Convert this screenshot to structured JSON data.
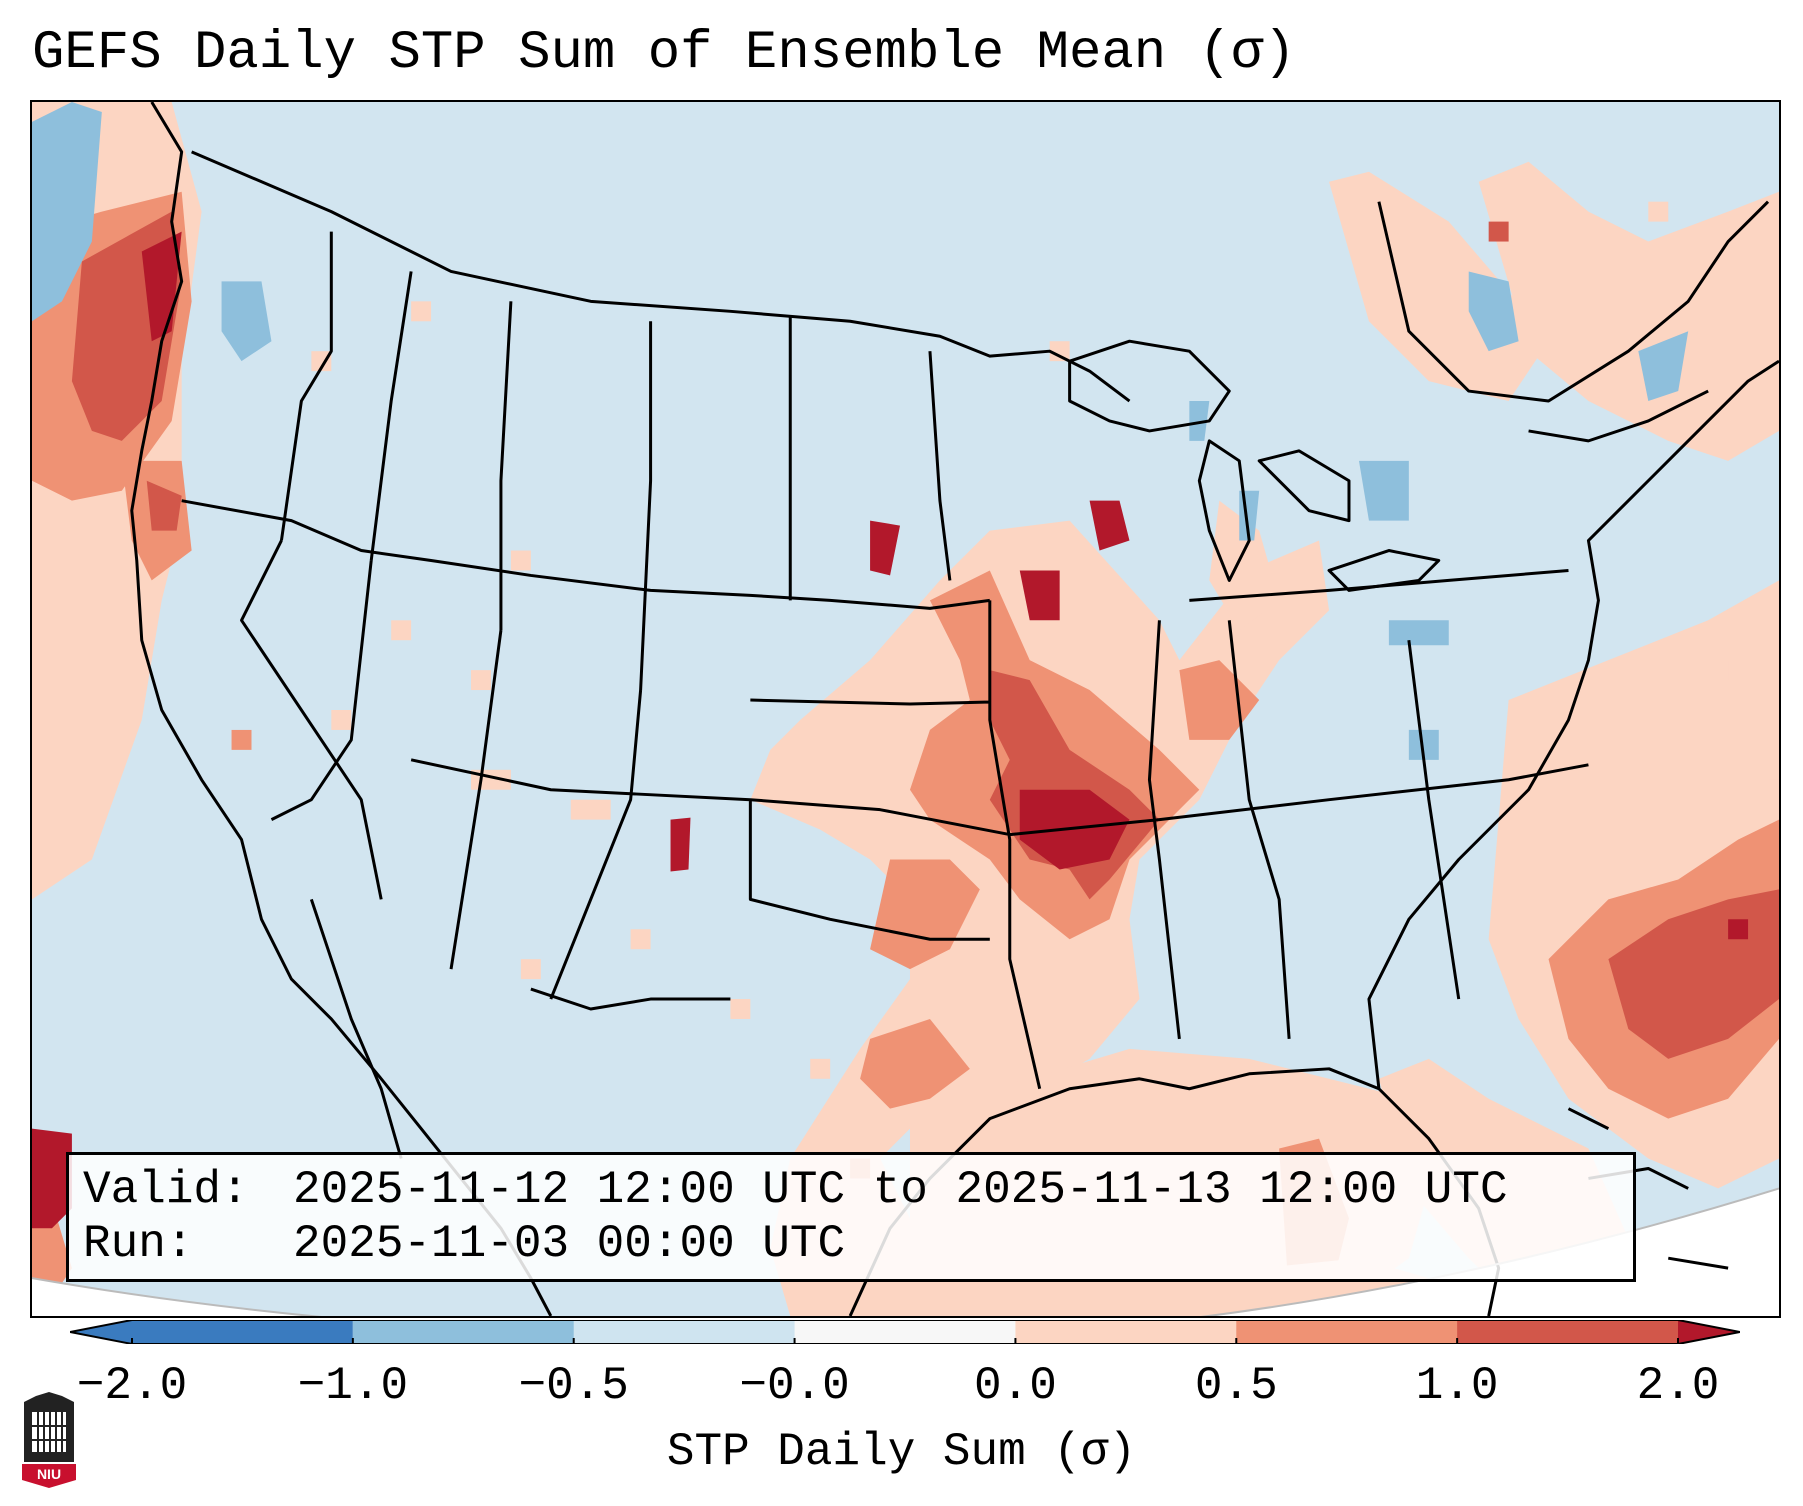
{
  "title": "GEFS Daily STP Sum of Ensemble Mean (σ)",
  "info": {
    "valid_label": "Valid:",
    "valid_value": "2025-11-12 12:00 UTC to 2025-11-13 12:00 UTC",
    "run_label": "Run:",
    "run_value": "2025-11-03 00:00 UTC"
  },
  "colorbar": {
    "label": "STP Daily Sum (σ)",
    "ticks": [
      "−2.0",
      "−1.0",
      "−0.5",
      "−0.0",
      "0.0",
      "0.5",
      "1.0",
      "2.0"
    ],
    "colors": [
      "#3a7bbf",
      "#8ebfdc",
      "#cfe4f0",
      "#f7f7f7",
      "#fcd5c2",
      "#ef9274",
      "#d2574a",
      "#b2182b"
    ],
    "extend": "both"
  },
  "logo": {
    "text": "NIU",
    "name": "niu-seal-icon"
  },
  "map": {
    "projection": "Lambert Conformal, contiguous United States",
    "field": "STP daily sum anomaly (σ), ensemble mean",
    "background_color": "#d2e5f0",
    "positive_regions": [
      "Pacific coast of Oregon and Washington",
      "Missouri and Arkansas",
      "Mississippi and lower Ohio valleys",
      "Gulf of Mexico",
      "Western Atlantic east of Florida"
    ],
    "negative_regions": [
      "Pacific near Vancouver Island",
      "Great Lakes",
      "Gulf of St. Lawrence"
    ]
  }
}
